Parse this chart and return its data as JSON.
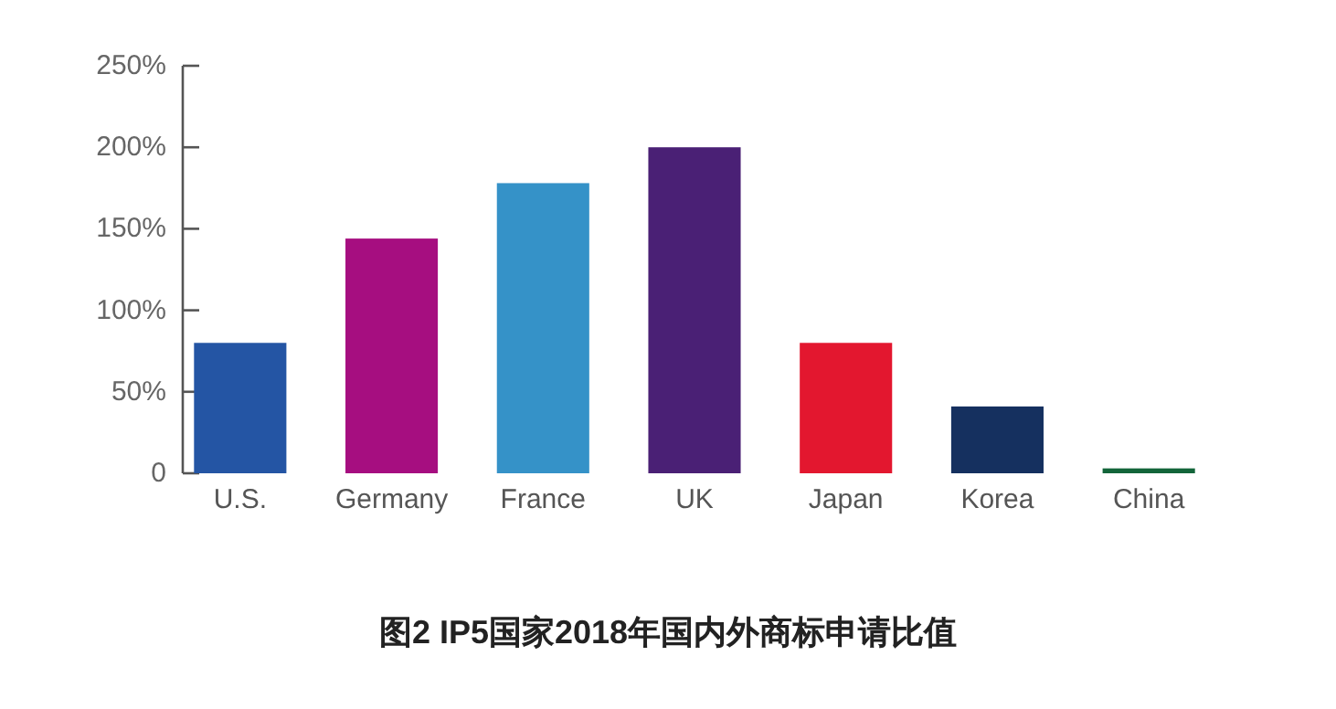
{
  "chart_data": {
    "type": "bar",
    "title": "图2 IP5国家2018年国内外商标申请比值",
    "categories": [
      "U.S.",
      "Germany",
      "France",
      "UK",
      "Japan",
      "Korea",
      "China"
    ],
    "values": [
      80,
      144,
      178,
      200,
      80,
      41,
      3
    ],
    "colors": [
      "#2455a4",
      "#a60e80",
      "#3592c8",
      "#4a2075",
      "#e3172f",
      "#15305f",
      "#13653a"
    ],
    "ylim": [
      0,
      250
    ],
    "yticks": [
      {
        "value": 0,
        "label": "0"
      },
      {
        "value": 50,
        "label": "50%"
      },
      {
        "value": 100,
        "label": "100%"
      },
      {
        "value": 150,
        "label": "150%"
      },
      {
        "value": 200,
        "label": "200%"
      },
      {
        "value": 250,
        "label": "250%"
      }
    ],
    "grid": false
  }
}
